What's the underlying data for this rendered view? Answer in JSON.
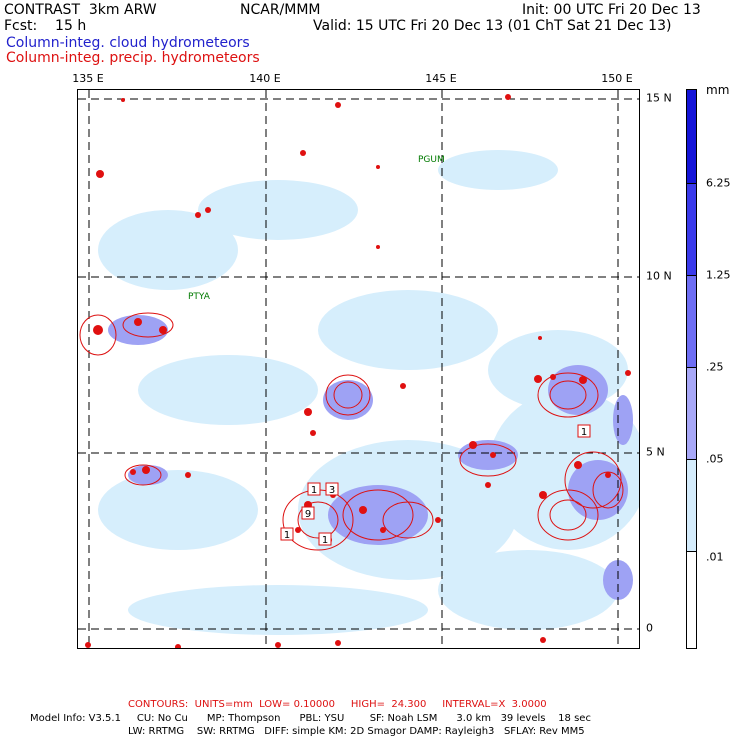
{
  "header": {
    "left_line1": "CONTRAST  3km ARW",
    "center_line1": "NCAR/MMM",
    "right_line1": "Init: 00 UTC Fri 20 Dec 13",
    "left_line2": "Fcst:    15 h",
    "right_line2": "Valid: 15 UTC Fri 20 Dec 13 (01 ChT Sat 21 Dec 13)",
    "legend_cloud": "Column-integ. cloud hydrometeors",
    "legend_precip": "Column-integ. precip. hydrometeors"
  },
  "axes": {
    "lon_labels": [
      "135 E",
      "140 E",
      "145 E",
      "150 E"
    ],
    "lat_labels": [
      "15 N",
      "10 N",
      "5 N",
      "0"
    ]
  },
  "stations": [
    "PGUM",
    "PTYA"
  ],
  "colorbar": {
    "unit": "mm",
    "labels": [
      "6.25",
      "1.25",
      ".25",
      ".05",
      ".01"
    ],
    "colors": [
      "#1515d8",
      "#3a3aea",
      "#6e6ef4",
      "#a8a8f8",
      "#d4ecfc",
      "#ffffff"
    ]
  },
  "contour_labels": [
    "1",
    "3",
    "9",
    "1",
    "1",
    "1"
  ],
  "footer": {
    "contours_line": "CONTOURS:  UNITS=mm  LOW= 0.10000     HIGH=  24.300     INTERVAL=X  3.0000",
    "model_line1": "Model Info: V3.5.1     CU: No Cu      MP: Thompson      PBL: YSU        SF: Noah LSM      3.0 km   39 levels    18 sec",
    "model_line2": "LW: RRTMG    SW: RRTMG   DIFF: simple KM: 2D Smagor DAMP: Rayleigh3   SFLAY: Rev MM5"
  }
}
